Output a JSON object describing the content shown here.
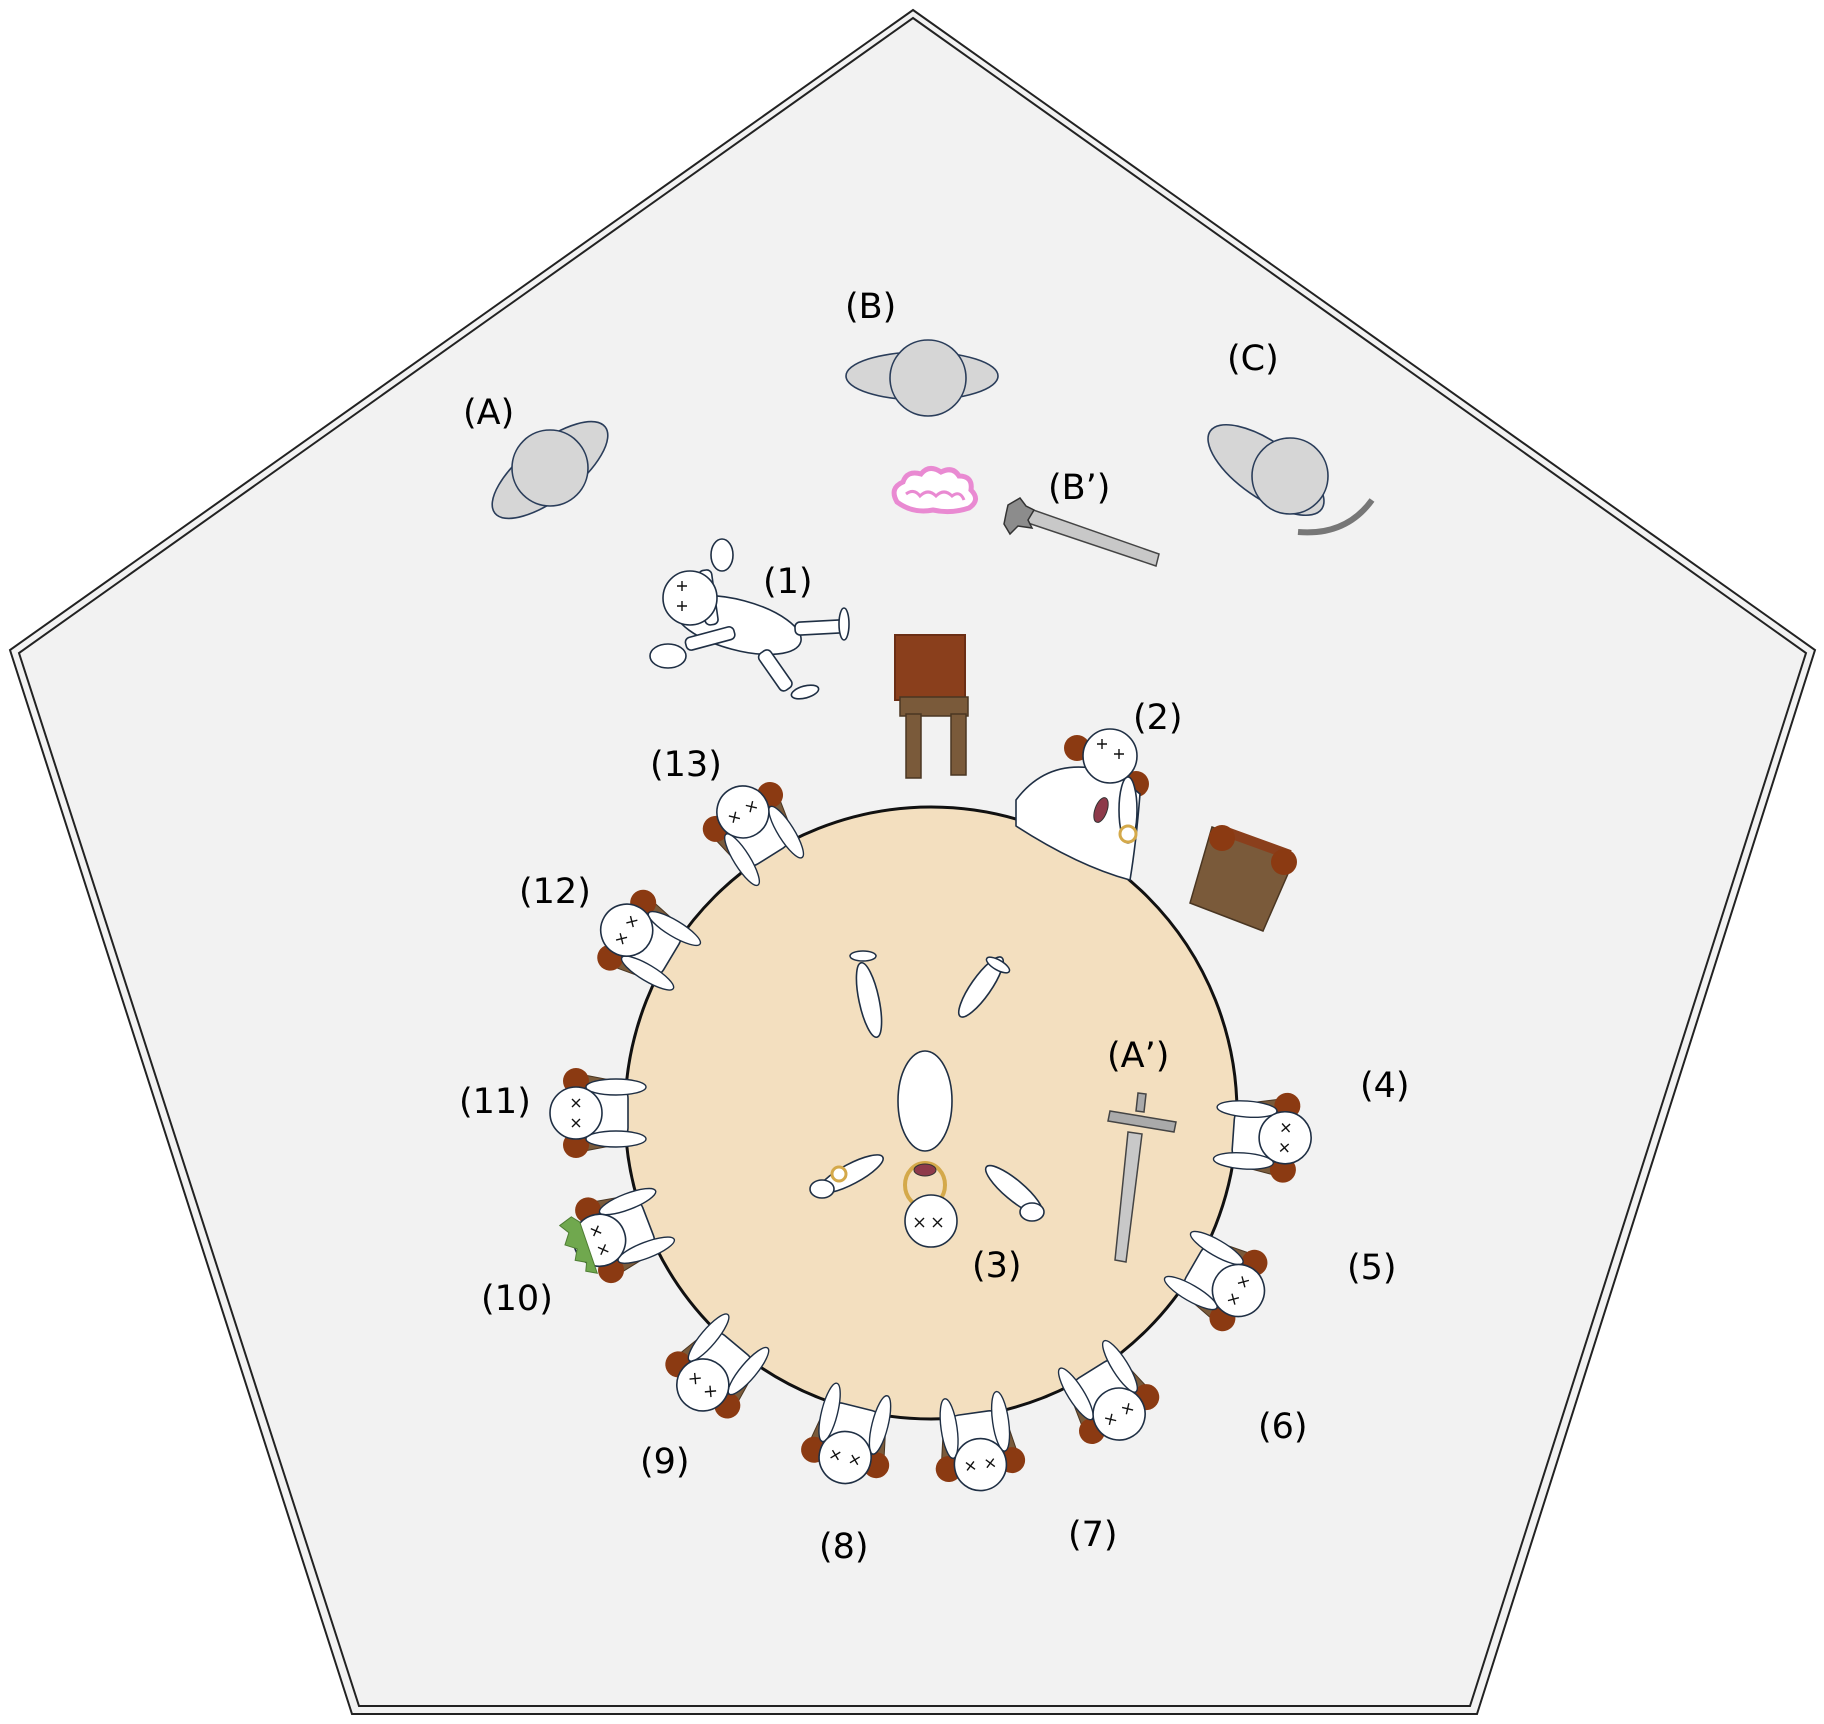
{
  "labels": {
    "A": "(A)",
    "B": "(B)",
    "C": "(C)",
    "A_prime": "(A’)",
    "B_prime": "(B’)",
    "n1": "(1)",
    "n2": "(2)",
    "n3": "(3)",
    "n4": "(4)",
    "n5": "(5)",
    "n6": "(6)",
    "n7": "(7)",
    "n8": "(8)",
    "n9": "(9)",
    "n10": "(10)",
    "n11": "(11)",
    "n12": "(12)",
    "n13": "(13)"
  },
  "colors": {
    "room_floor": "#f2f2f2",
    "room_border": "#222222",
    "table": "#f3dfbf",
    "chair_seat": "#7a5a3a",
    "chair_back": "#8a3f1c",
    "hair": "#8b3a12",
    "figure": "#ffffff",
    "ghost": "#d6d6d6",
    "weapon": "#c8c8c8",
    "brain": "#e98ad2",
    "ring": "#d4a94a",
    "wound": "#8e3a4a",
    "green_item": "#70a84e"
  },
  "icons": {
    "ghosts": "ghost-figure-icon",
    "seated": "seated-victim-icon",
    "sword": "sword-icon",
    "mace": "mace-icon",
    "brain": "brain-icon",
    "ring": "ring-icon",
    "chair": "chair-icon"
  }
}
